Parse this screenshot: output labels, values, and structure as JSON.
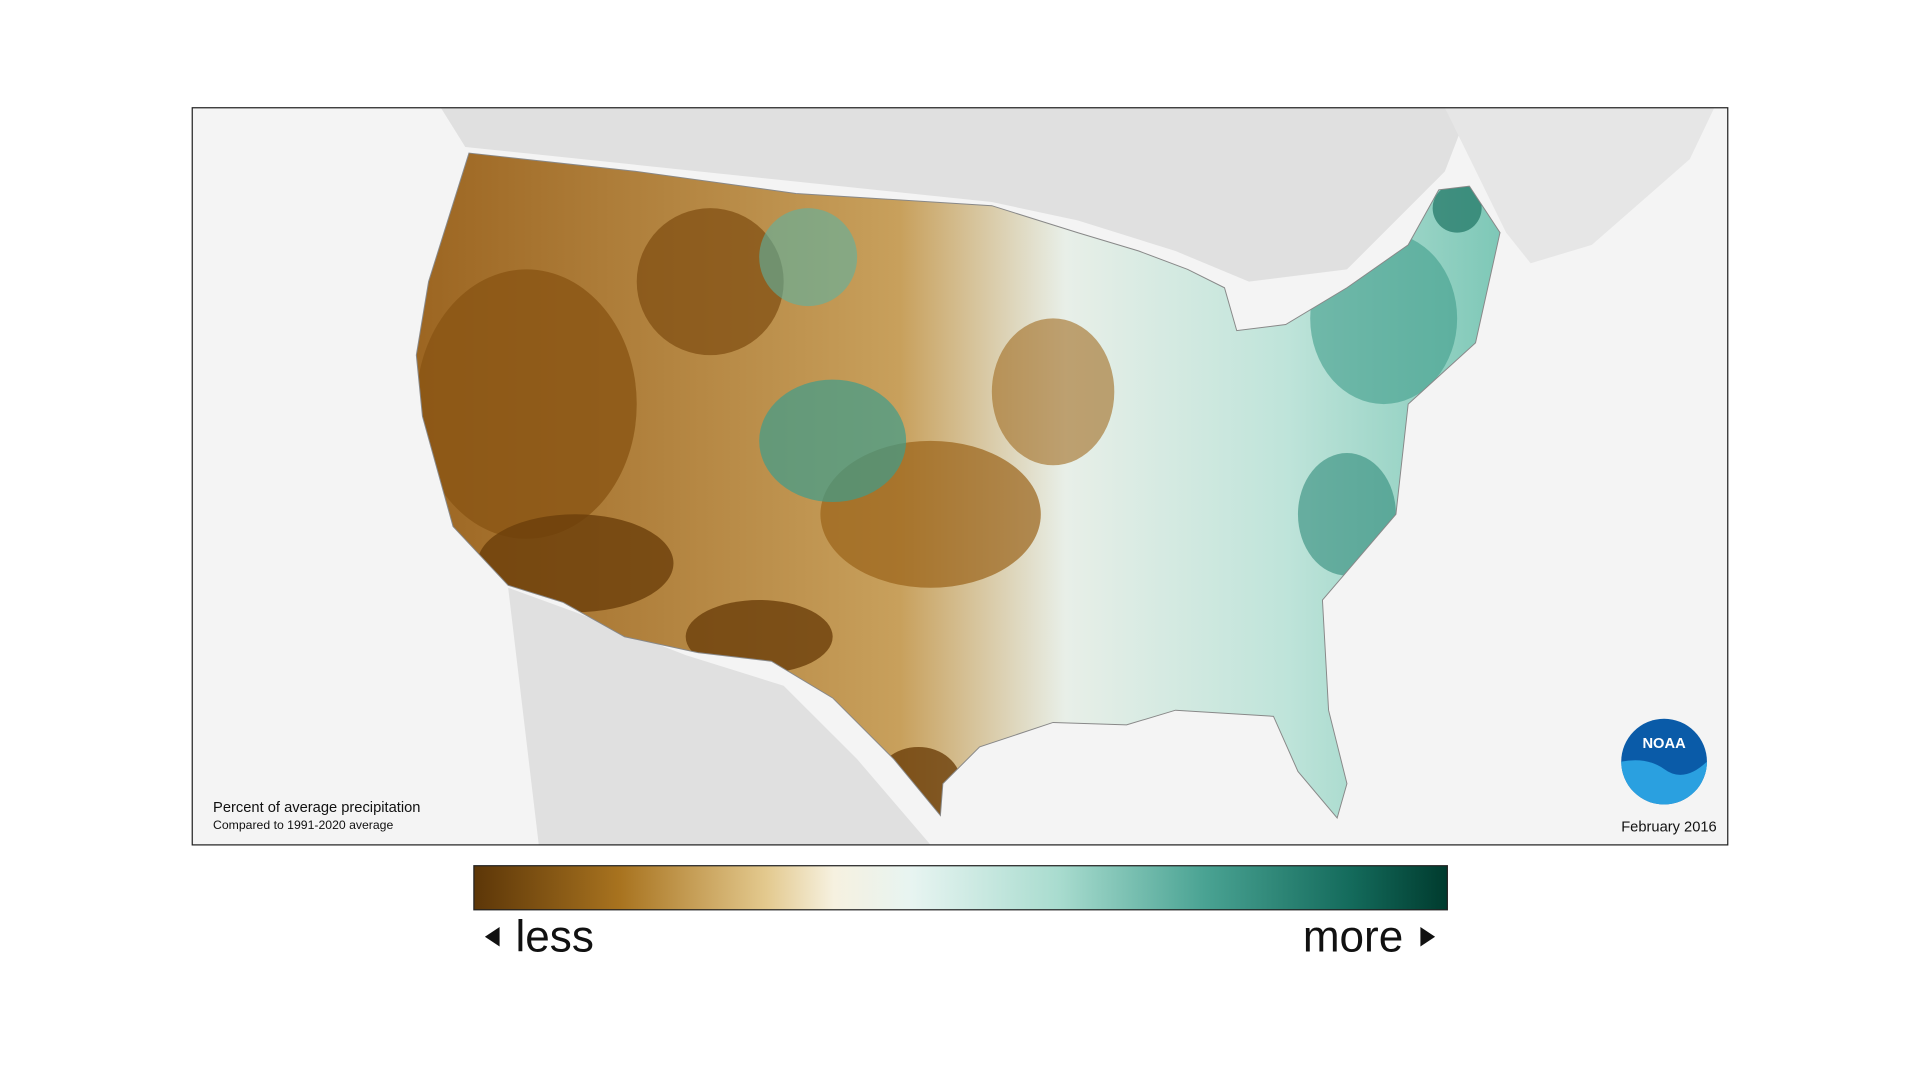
{
  "map": {
    "caption": "Percent of average precipitation",
    "subcaption": "Compared to 1991-2020 average",
    "date": "February 2016",
    "logo": "NOAA",
    "legend": {
      "low": "less",
      "high": "more"
    }
  }
}
